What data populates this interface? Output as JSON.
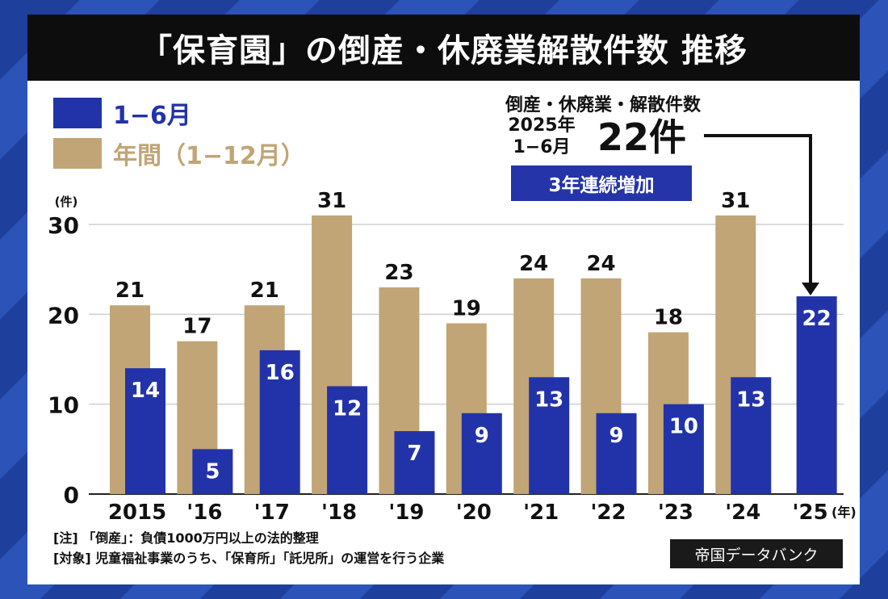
{
  "title": "「保育園」の倒産・休廃業解散件数 推移",
  "legend": [
    {
      "label": "1−6月",
      "color": "#2233aa"
    },
    {
      "label": "年間（1−12月）",
      "color": "#c1a576"
    }
  ],
  "callout": {
    "label": "倒産・休廃業・解散件数",
    "period_line1": "2025年",
    "period_line2": "1−6月",
    "value": "22件",
    "badge": "3年連続増加"
  },
  "notes": [
    "[注] 「倒産」：負債1000万円以上の法的整理",
    "[対象] 児童福祉事業のうち、「保育所」「託児所」の運営を行う企業"
  ],
  "source": "帝国データバンク",
  "chart_data": {
    "type": "bar",
    "categories": [
      "2015",
      "'16",
      "'17",
      "'18",
      "'19",
      "'20",
      "'21",
      "'22",
      "'23",
      "'24",
      "'25"
    ],
    "x_unit": "(年)",
    "y_unit": "(件)",
    "ylim": [
      0,
      30
    ],
    "yticks": [
      0,
      10,
      20,
      30
    ],
    "grid": true,
    "series": [
      {
        "name": "年間（1−12月）",
        "color": "#c1a576",
        "values": [
          21,
          17,
          21,
          31,
          23,
          19,
          24,
          24,
          18,
          31,
          null
        ]
      },
      {
        "name": "1−6月",
        "color": "#2233aa",
        "values": [
          14,
          5,
          16,
          12,
          7,
          9,
          13,
          9,
          10,
          13,
          22
        ]
      }
    ]
  }
}
